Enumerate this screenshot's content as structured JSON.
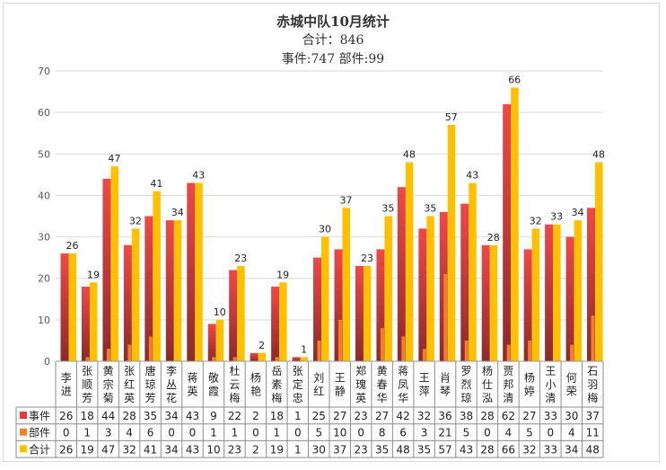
{
  "chart_data": {
    "type": "bar",
    "title": "赤城中队10月统计",
    "subtitle1": "合计：846",
    "subtitle2": "事件:747 部件:99",
    "ylim": [
      0,
      70
    ],
    "yticks": [
      0,
      10,
      20,
      30,
      40,
      50,
      60,
      70
    ],
    "grid": true,
    "legend": "table-left",
    "categories": [
      "李进",
      "张顺芳",
      "黄宗菊",
      "张红英",
      "唐琼芳",
      "李丛花",
      "蒋英",
      "敬霞",
      "杜云梅",
      "杨艳",
      "岳素梅",
      "张定忠",
      "刘红",
      "王静",
      "郑瑰英",
      "黄春华",
      "蒋凤华",
      "王萍",
      "肖琴",
      "罗烈琼",
      "杨仕泓",
      "贾邦清",
      "杨婷",
      "王小清",
      "何荣",
      "石羽梅"
    ],
    "series": [
      {
        "name": "事件",
        "color": "#e03c3c",
        "values": [
          26,
          18,
          44,
          28,
          35,
          34,
          43,
          9,
          22,
          2,
          18,
          1,
          25,
          27,
          23,
          27,
          42,
          32,
          36,
          38,
          28,
          62,
          27,
          33,
          30,
          37
        ]
      },
      {
        "name": "部件",
        "color": "#f08030",
        "values": [
          0,
          1,
          3,
          4,
          6,
          0,
          0,
          1,
          1,
          0,
          1,
          0,
          5,
          10,
          0,
          8,
          6,
          3,
          21,
          5,
          0,
          4,
          5,
          0,
          4,
          11
        ]
      },
      {
        "name": "合计",
        "color": "#ffc000",
        "values": [
          26,
          19,
          47,
          32,
          41,
          34,
          43,
          10,
          23,
          2,
          19,
          1,
          30,
          37,
          23,
          35,
          48,
          35,
          57,
          43,
          28,
          66,
          32,
          33,
          34,
          48
        ]
      }
    ]
  }
}
